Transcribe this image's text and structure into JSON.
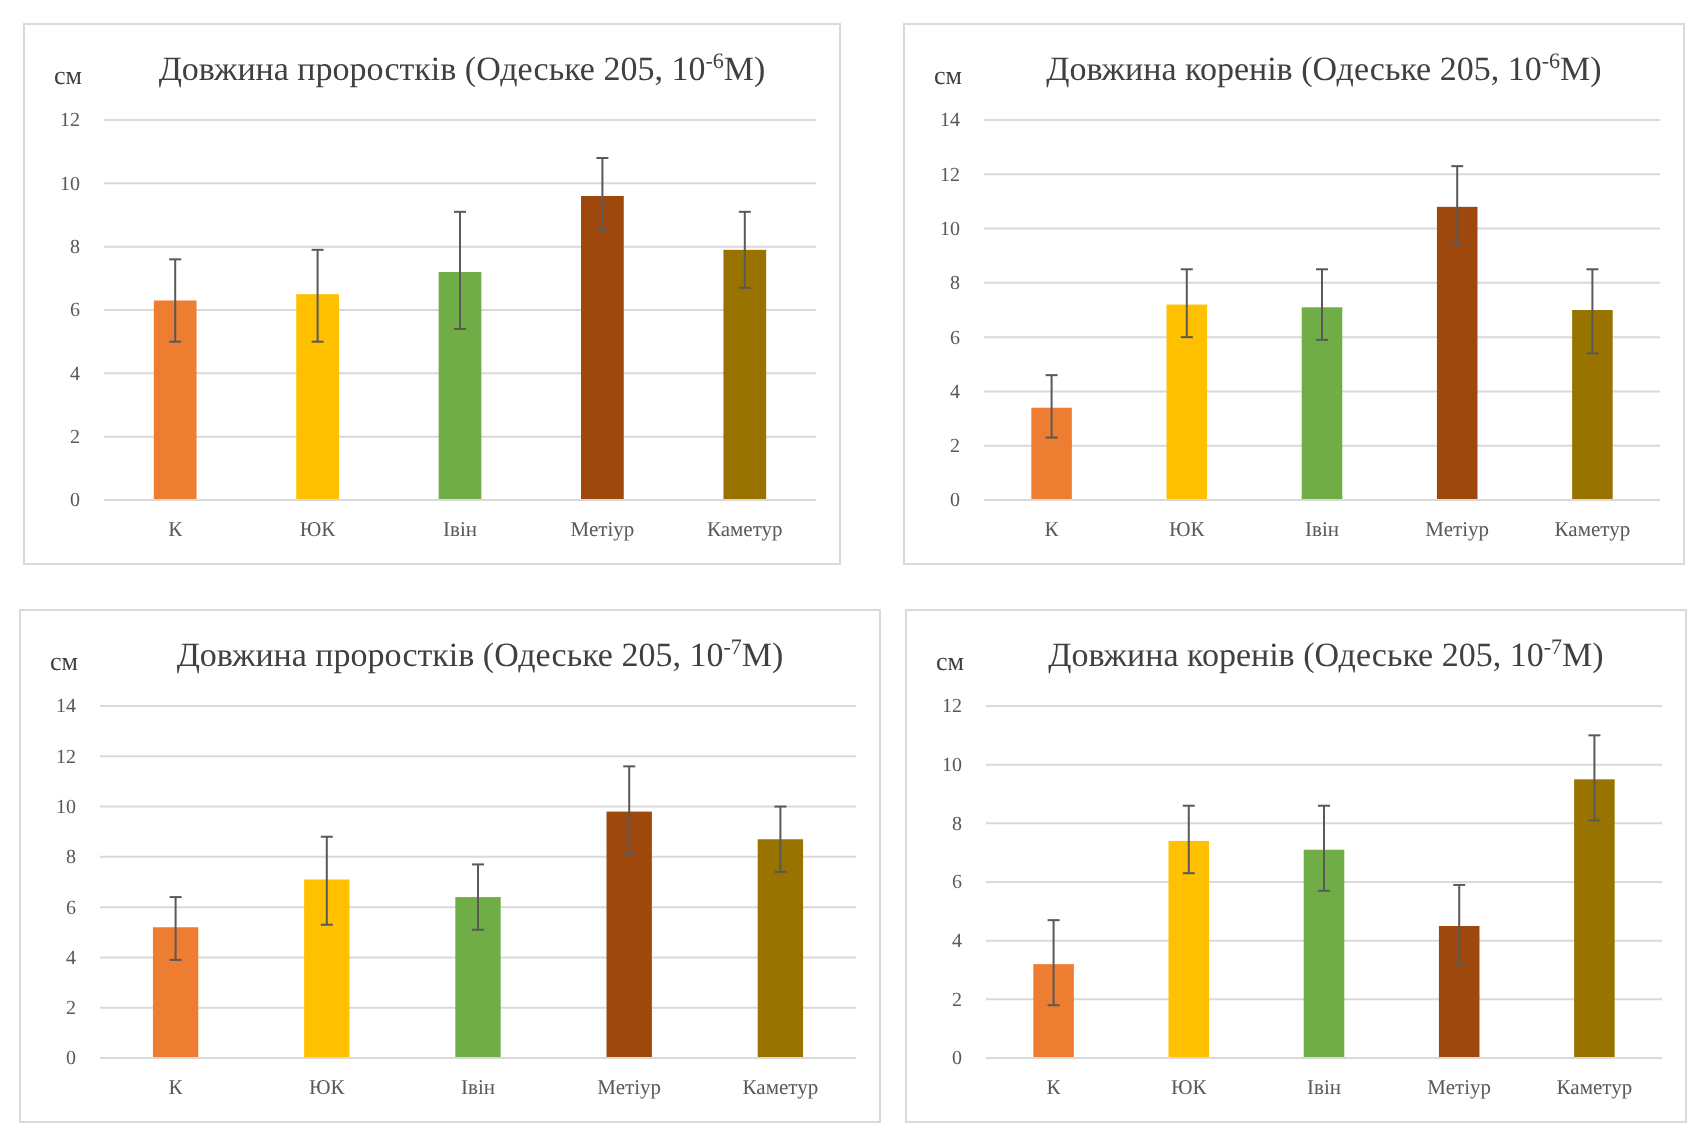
{
  "chart_data": [
    {
      "type": "bar",
      "title": "Довжина проростків (Одеське 205, 10$^{-6}$М)",
      "ylabel": "см",
      "categories": [
        "К",
        "ЮК",
        "Івін",
        "Метіур",
        "Каметур"
      ],
      "values": [
        6.3,
        6.5,
        7.2,
        9.6,
        7.9
      ],
      "errors": [
        [
          5.0,
          7.6
        ],
        [
          5.0,
          7.9
        ],
        [
          5.4,
          9.1
        ],
        [
          8.5,
          10.8
        ],
        [
          6.7,
          9.1
        ]
      ],
      "colors": [
        "#ed7d31",
        "#ffc000",
        "#70ad47",
        "#9e480e",
        "#997300"
      ],
      "ylim": [
        0,
        12
      ],
      "yticks": [
        0,
        2,
        4,
        6,
        8,
        10,
        12
      ],
      "grid": "y"
    },
    {
      "type": "bar",
      "title": "Довжина коренів (Одеське 205, 10$^{-6}$М)",
      "ylabel": "см",
      "categories": [
        "К",
        "ЮК",
        "Івін",
        "Метіур",
        "Каметур"
      ],
      "values": [
        3.4,
        7.2,
        7.1,
        10.8,
        7.0
      ],
      "errors": [
        [
          2.3,
          4.6
        ],
        [
          6.0,
          8.5
        ],
        [
          5.9,
          8.5
        ],
        [
          9.4,
          12.3
        ],
        [
          5.4,
          8.5
        ]
      ],
      "colors": [
        "#ed7d31",
        "#ffc000",
        "#70ad47",
        "#9e480e",
        "#997300"
      ],
      "ylim": [
        0,
        14
      ],
      "yticks": [
        0,
        2,
        4,
        6,
        8,
        10,
        12,
        14
      ],
      "grid": "y"
    },
    {
      "type": "bar",
      "title": "Довжина проростків (Одеське 205, 10$^{-7}$М)",
      "ylabel": "см",
      "categories": [
        "К",
        "ЮК",
        "Івін",
        "Метіур",
        "Каметур"
      ],
      "values": [
        5.2,
        7.1,
        6.4,
        9.8,
        8.7
      ],
      "errors": [
        [
          3.9,
          6.4
        ],
        [
          5.3,
          8.8
        ],
        [
          5.1,
          7.7
        ],
        [
          8.1,
          11.6
        ],
        [
          7.4,
          10.0
        ]
      ],
      "colors": [
        "#ed7d31",
        "#ffc000",
        "#70ad47",
        "#9e480e",
        "#997300"
      ],
      "ylim": [
        0,
        14
      ],
      "yticks": [
        0,
        2,
        4,
        6,
        8,
        10,
        12,
        14
      ],
      "grid": "y"
    },
    {
      "type": "bar",
      "title": "Довжина коренів (Одеське 205, 10$^{-7}$М)",
      "ylabel": "см",
      "categories": [
        "К",
        "ЮК",
        "Івін",
        "Метіур",
        "Каметур"
      ],
      "values": [
        3.2,
        7.4,
        7.1,
        4.5,
        9.5
      ],
      "errors": [
        [
          1.8,
          4.7
        ],
        [
          6.3,
          8.6
        ],
        [
          5.7,
          8.6
        ],
        [
          3.2,
          5.9
        ],
        [
          8.1,
          11.0
        ]
      ],
      "colors": [
        "#ed7d31",
        "#ffc000",
        "#70ad47",
        "#9e480e",
        "#997300"
      ],
      "ylim": [
        0,
        12
      ],
      "yticks": [
        0,
        2,
        4,
        6,
        8,
        10,
        12
      ],
      "grid": "y"
    }
  ]
}
